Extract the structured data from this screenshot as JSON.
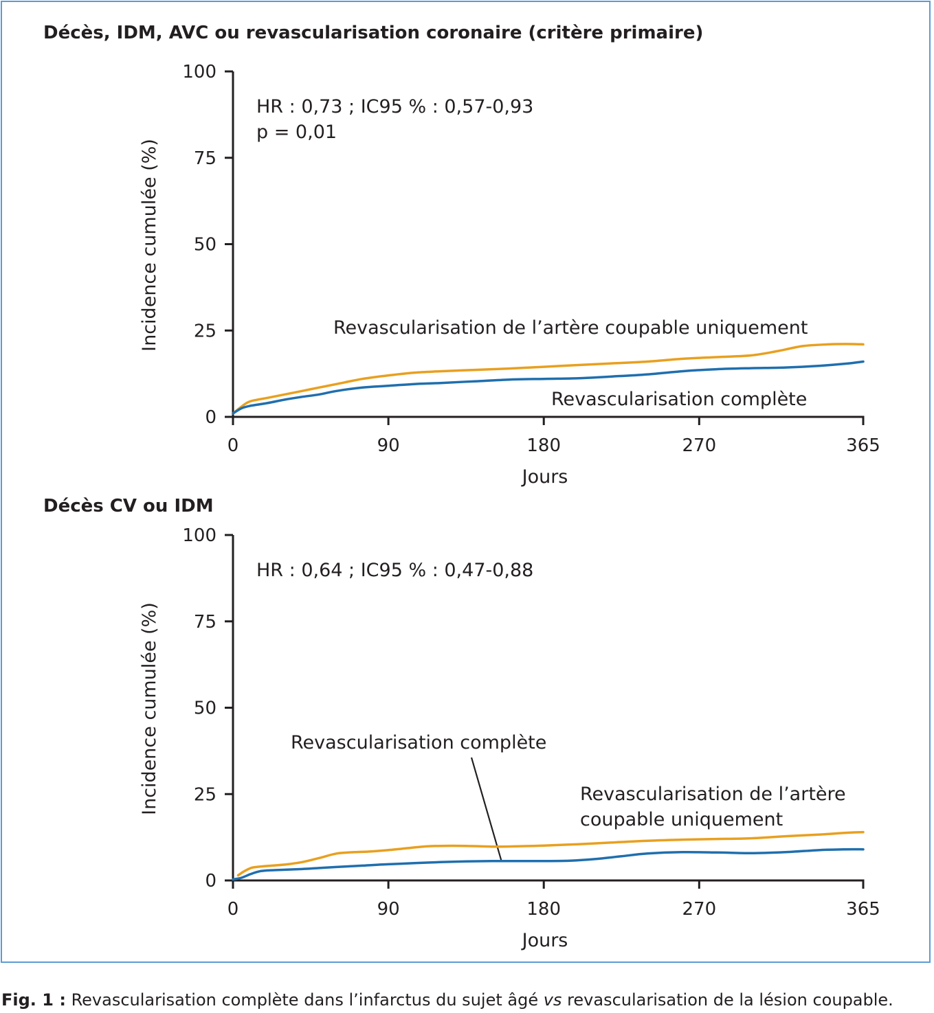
{
  "colors": {
    "complete": "#1f6fae",
    "culprit": "#e8a01f",
    "frame": "#5b9bd5"
  },
  "caption": {
    "label": "Fig. 1 :",
    "text_before": " Revascularisation complète dans l’infarctus du sujet âgé ",
    "text_italic": "vs",
    "text_after": " revascularisation de la lésion coupable."
  },
  "chart_data": [
    {
      "type": "line",
      "title": "Décès, IDM, AVC ou revascularisation coronaire (critère primaire)",
      "xlabel": "Jours",
      "ylabel": "Incidence cumulée (%)",
      "xlim": [
        0,
        365
      ],
      "ylim": [
        0,
        100
      ],
      "xticks": [
        "0",
        "90",
        "180",
        "270",
        "365"
      ],
      "yticks": [
        "0",
        "25",
        "50",
        "75",
        "100"
      ],
      "annotation_lines": [
        "HR : 0,73 ; IC95 % : 0,57-0,93",
        "p = 0,01"
      ],
      "series": [
        {
          "name": "Revascularisation de l’artère coupable uniquement",
          "color_key": "culprit",
          "x": [
            0,
            5,
            10,
            20,
            30,
            40,
            50,
            60,
            75,
            90,
            105,
            120,
            140,
            160,
            180,
            200,
            220,
            240,
            260,
            280,
            300,
            315,
            330,
            345,
            355,
            365
          ],
          "y": [
            1,
            3,
            4.5,
            5.5,
            6.5,
            7.5,
            8.5,
            9.5,
            11,
            12,
            12.8,
            13.2,
            13.6,
            14,
            14.5,
            15,
            15.5,
            16,
            16.8,
            17.3,
            17.8,
            19,
            20.5,
            21,
            21.1,
            21
          ]
        },
        {
          "name": "Revascularisation complète",
          "color_key": "complete",
          "x": [
            0,
            5,
            10,
            20,
            30,
            40,
            50,
            60,
            75,
            90,
            105,
            120,
            140,
            160,
            180,
            200,
            220,
            240,
            260,
            280,
            300,
            320,
            340,
            355,
            365
          ],
          "y": [
            1,
            2.5,
            3.2,
            4,
            5,
            5.8,
            6.5,
            7.5,
            8.5,
            9,
            9.5,
            9.8,
            10.3,
            10.8,
            11,
            11.2,
            11.7,
            12.3,
            13.2,
            13.8,
            14.1,
            14.3,
            14.8,
            15.4,
            16
          ]
        }
      ]
    },
    {
      "type": "line",
      "title": "Décès CV ou IDM",
      "xlabel": "Jours",
      "ylabel": "Incidence cumulée (%)",
      "xlim": [
        0,
        365
      ],
      "ylim": [
        0,
        100
      ],
      "xticks": [
        "0",
        "90",
        "180",
        "270",
        "365"
      ],
      "yticks": [
        "0",
        "25",
        "50",
        "75",
        "100"
      ],
      "annotation_lines": [
        "HR : 0,64 ; IC95 % : 0,47-0,88"
      ],
      "series": [
        {
          "name": "Revascularisation de l’artère coupable uniquement",
          "label_lines": [
            "Revascularisation de l’artère",
            "coupable uniquement"
          ],
          "color_key": "culprit",
          "x": [
            3,
            6,
            9,
            12,
            20,
            30,
            40,
            50,
            60,
            70,
            80,
            90,
            100,
            110,
            120,
            135,
            150,
            165,
            180,
            200,
            220,
            240,
            260,
            280,
            300,
            320,
            340,
            355,
            365
          ],
          "y": [
            1.5,
            2.5,
            3.3,
            3.8,
            4.2,
            4.6,
            5.3,
            6.5,
            7.8,
            8.2,
            8.4,
            8.8,
            9.3,
            9.8,
            10,
            10,
            9.8,
            9.9,
            10.1,
            10.5,
            11,
            11.5,
            11.8,
            12,
            12.2,
            12.8,
            13.3,
            13.8,
            14
          ]
        },
        {
          "name": "Revascularisation complète",
          "label_lines": [
            "Revascularisation complète"
          ],
          "color_key": "complete",
          "x": [
            0,
            5,
            10,
            15,
            20,
            30,
            40,
            50,
            60,
            75,
            90,
            105,
            120,
            135,
            150,
            165,
            180,
            195,
            210,
            225,
            240,
            260,
            280,
            300,
            320,
            340,
            355,
            365
          ],
          "y": [
            0.3,
            0.8,
            1.8,
            2.6,
            2.9,
            3.1,
            3.3,
            3.6,
            3.9,
            4.3,
            4.7,
            5,
            5.3,
            5.5,
            5.6,
            5.6,
            5.6,
            5.7,
            6.2,
            7,
            7.8,
            8.2,
            8.1,
            7.9,
            8.2,
            8.8,
            9,
            9
          ]
        }
      ]
    }
  ]
}
